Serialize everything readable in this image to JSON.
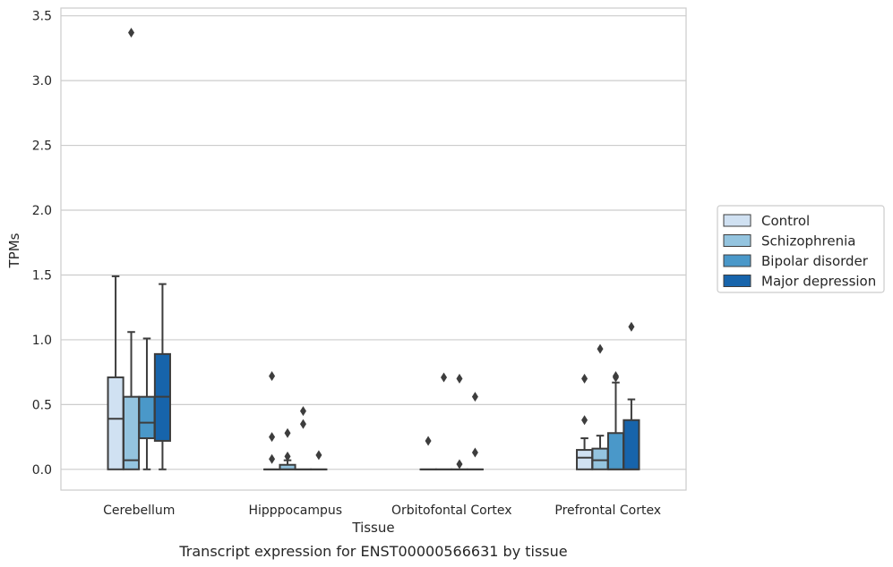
{
  "chart_data": {
    "type": "boxplot",
    "title": "",
    "xlabel": "Tissue",
    "ylabel": "TPMs",
    "caption": "Transcript expression for ENST00000566631 by tissue",
    "ylim": [
      -0.16,
      3.56
    ],
    "yticks": [
      "0.0",
      "0.5",
      "1.0",
      "1.5",
      "2.0",
      "2.5",
      "3.0",
      "3.5"
    ],
    "grid": true,
    "legend_position": "right",
    "categories": [
      "Cerebellum",
      "Hipppocampus",
      "Orbitofontal Cortex",
      "Prefrontal Cortex"
    ],
    "series": [
      {
        "name": "Control",
        "color": "#d0e1f2",
        "boxes": [
          {
            "q1": 0.0,
            "median": 0.39,
            "q3": 0.71,
            "whisker_low": 0.0,
            "whisker_high": 1.49,
            "outliers": []
          },
          {
            "q1": 0.0,
            "median": 0.0,
            "q3": 0.0,
            "whisker_low": 0.0,
            "whisker_high": 0.0,
            "outliers": [
              0.72,
              0.25,
              0.08
            ]
          },
          {
            "q1": 0.0,
            "median": 0.0,
            "q3": 0.0,
            "whisker_low": 0.0,
            "whisker_high": 0.0,
            "outliers": [
              0.22
            ]
          },
          {
            "q1": 0.0,
            "median": 0.09,
            "q3": 0.15,
            "whisker_low": 0.0,
            "whisker_high": 0.24,
            "outliers": [
              0.7,
              0.38
            ]
          }
        ]
      },
      {
        "name": "Schizophrenia",
        "color": "#94c4df",
        "boxes": [
          {
            "q1": 0.0,
            "median": 0.07,
            "q3": 0.56,
            "whisker_low": 0.0,
            "whisker_high": 1.06,
            "outliers": [
              3.37
            ]
          },
          {
            "q1": 0.0,
            "median": 0.0,
            "q3": 0.035,
            "whisker_low": 0.0,
            "whisker_high": 0.07,
            "outliers": [
              0.28,
              0.1
            ]
          },
          {
            "q1": 0.0,
            "median": 0.0,
            "q3": 0.0,
            "whisker_low": 0.0,
            "whisker_high": 0.0,
            "outliers": [
              0.71
            ]
          },
          {
            "q1": 0.0,
            "median": 0.07,
            "q3": 0.16,
            "whisker_low": 0.0,
            "whisker_high": 0.26,
            "outliers": [
              0.93
            ]
          }
        ]
      },
      {
        "name": "Bipolar disorder",
        "color": "#4a98c9",
        "boxes": [
          {
            "q1": 0.24,
            "median": 0.36,
            "q3": 0.56,
            "whisker_low": 0.0,
            "whisker_high": 1.01,
            "outliers": []
          },
          {
            "q1": 0.0,
            "median": 0.0,
            "q3": 0.0,
            "whisker_low": 0.0,
            "whisker_high": 0.0,
            "outliers": [
              0.45,
              0.35
            ]
          },
          {
            "q1": 0.0,
            "median": 0.0,
            "q3": 0.0,
            "whisker_low": 0.0,
            "whisker_high": 0.0,
            "outliers": [
              0.7,
              0.04
            ]
          },
          {
            "q1": 0.0,
            "median": 0.0,
            "q3": 0.28,
            "whisker_low": 0.0,
            "whisker_high": 0.67,
            "outliers": [
              0.72,
              0.71
            ]
          }
        ]
      },
      {
        "name": "Major depression",
        "color": "#1764ab",
        "boxes": [
          {
            "q1": 0.22,
            "median": 0.56,
            "q3": 0.89,
            "whisker_low": 0.0,
            "whisker_high": 1.43,
            "outliers": []
          },
          {
            "q1": 0.0,
            "median": 0.0,
            "q3": 0.0,
            "whisker_low": 0.0,
            "whisker_high": 0.0,
            "outliers": [
              0.11
            ]
          },
          {
            "q1": 0.0,
            "median": 0.0,
            "q3": 0.0,
            "whisker_low": 0.0,
            "whisker_high": 0.0,
            "outliers": [
              0.56,
              0.13
            ]
          },
          {
            "q1": 0.0,
            "median": 0.0,
            "q3": 0.38,
            "whisker_low": 0.0,
            "whisker_high": 0.54,
            "outliers": [
              1.1
            ]
          }
        ]
      }
    ]
  }
}
